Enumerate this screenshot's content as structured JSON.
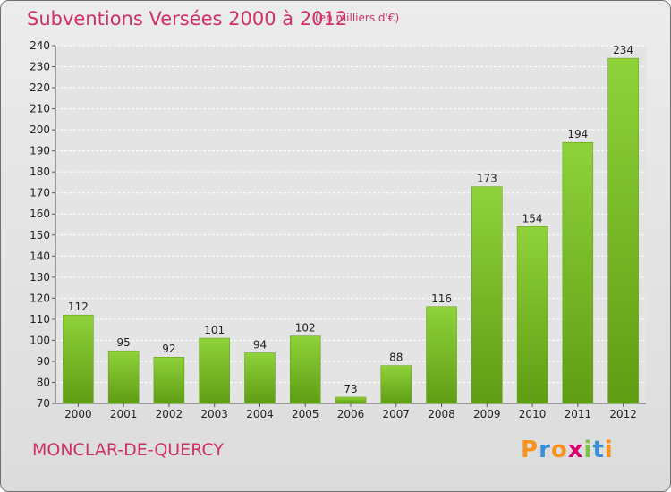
{
  "title": "Subventions Versées 2000 à 2012",
  "subtitle": "(en milliers d'€)",
  "city": "MONCLAR-DE-QUERCY",
  "logo": {
    "letters": [
      "P",
      "r",
      "o",
      "x",
      "i",
      "t",
      "i"
    ],
    "colors": [
      "#f7931e",
      "#3a8fd6",
      "#f7931e",
      "#d6006f",
      "#7cc242",
      "#3a8fd6",
      "#f7931e"
    ]
  },
  "chart_data": {
    "type": "bar",
    "categories": [
      "2000",
      "2001",
      "2002",
      "2003",
      "2004",
      "2005",
      "2006",
      "2007",
      "2008",
      "2009",
      "2010",
      "2011",
      "2012"
    ],
    "values": [
      112,
      95,
      92,
      101,
      94,
      102,
      73,
      88,
      116,
      173,
      154,
      194,
      234
    ],
    "ylim": [
      70,
      240
    ],
    "yticks": [
      70,
      80,
      90,
      100,
      110,
      120,
      130,
      140,
      150,
      160,
      170,
      180,
      190,
      200,
      210,
      220,
      230,
      240
    ],
    "grid": true,
    "bar_color": "#7cbf2c"
  }
}
